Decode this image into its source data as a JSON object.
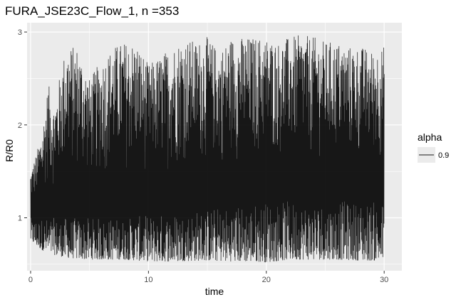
{
  "chart_data": {
    "type": "line",
    "title": "FURA_JSE23C_Flow_1, n =353",
    "xlabel": "time",
    "ylabel": "R/R0",
    "xlim": [
      -0.3,
      31.5
    ],
    "ylim": [
      0.43,
      3.1
    ],
    "x_ticks": [
      0,
      10,
      20,
      30
    ],
    "x_tick_labels": [
      "0",
      "10",
      "20",
      "30"
    ],
    "y_ticks": [
      1,
      2,
      3
    ],
    "y_tick_labels": [
      "1",
      "2",
      "3"
    ],
    "x_minor": [
      5,
      15,
      25
    ],
    "y_minor": [
      0.5,
      1.5,
      2.5
    ],
    "grid": true,
    "legend": {
      "title": "alpha",
      "position": "right",
      "entries": [
        {
          "label": "0.9"
        }
      ]
    },
    "colors": {
      "panel": "#ebebeb",
      "grid": "#ffffff",
      "line": "#000000",
      "line_opacity": 0.9
    },
    "series": [
      {
        "x_range": [
          0,
          30
        ],
        "n_points": 1800,
        "baseline": 1.0,
        "envelope_upper": [
          [
            0,
            1.5
          ],
          [
            0.5,
            1.7
          ],
          [
            1,
            1.95
          ],
          [
            1.5,
            2.45
          ],
          [
            2,
            2.2
          ],
          [
            2.5,
            2.55
          ],
          [
            3,
            2.85
          ],
          [
            4,
            2.85
          ],
          [
            5,
            2.5
          ],
          [
            6,
            2.7
          ],
          [
            7,
            2.85
          ],
          [
            8,
            2.9
          ],
          [
            9,
            2.9
          ],
          [
            10,
            2.65
          ],
          [
            11,
            2.75
          ],
          [
            12,
            2.85
          ],
          [
            13,
            2.95
          ],
          [
            14,
            2.9
          ],
          [
            15,
            2.95
          ],
          [
            16,
            2.8
          ],
          [
            17,
            2.95
          ],
          [
            18,
            2.95
          ],
          [
            19,
            2.95
          ],
          [
            20,
            2.95
          ],
          [
            21,
            2.9
          ],
          [
            22,
            2.95
          ],
          [
            23,
            2.97
          ],
          [
            24,
            2.95
          ],
          [
            25,
            2.9
          ],
          [
            26,
            2.9
          ],
          [
            27,
            2.85
          ],
          [
            28,
            2.85
          ],
          [
            29,
            2.8
          ],
          [
            30,
            2.85
          ]
        ],
        "envelope_lower": [
          [
            0,
            0.75
          ],
          [
            1,
            0.65
          ],
          [
            2,
            0.6
          ],
          [
            3,
            0.57
          ],
          [
            5,
            0.55
          ],
          [
            8,
            0.55
          ],
          [
            10,
            0.53
          ],
          [
            12,
            0.53
          ],
          [
            15,
            0.54
          ],
          [
            17,
            0.53
          ],
          [
            19,
            0.53
          ],
          [
            20,
            0.52
          ],
          [
            22,
            0.55
          ],
          [
            24,
            0.55
          ],
          [
            26,
            0.55
          ],
          [
            28,
            0.54
          ],
          [
            30,
            0.54
          ]
        ]
      }
    ]
  }
}
